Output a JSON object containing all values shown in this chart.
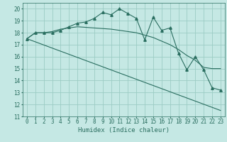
{
  "xlabel": "Humidex (Indice chaleur)",
  "bg_color": "#c5e8e4",
  "grid_color": "#9cccc4",
  "line_color": "#2a6e60",
  "xlim": [
    -0.5,
    23.5
  ],
  "ylim": [
    11,
    20.5
  ],
  "yticks": [
    11,
    12,
    13,
    14,
    15,
    16,
    17,
    18,
    19,
    20
  ],
  "xticks": [
    0,
    1,
    2,
    3,
    4,
    5,
    6,
    7,
    8,
    9,
    10,
    11,
    12,
    13,
    14,
    15,
    16,
    17,
    18,
    19,
    20,
    21,
    22,
    23
  ],
  "line1_x": [
    0,
    1,
    2,
    3,
    4,
    5,
    6,
    7,
    8,
    9,
    10,
    11,
    12,
    13,
    14,
    15,
    16,
    17,
    18,
    19,
    20,
    21,
    22,
    23
  ],
  "line1_y": [
    17.5,
    18.0,
    18.0,
    18.0,
    18.2,
    18.5,
    18.8,
    18.9,
    19.2,
    19.7,
    19.5,
    20.0,
    19.6,
    19.2,
    17.4,
    19.3,
    18.2,
    18.4,
    16.3,
    14.9,
    16.0,
    14.9,
    13.4,
    13.2
  ],
  "line2_x": [
    0,
    1,
    2,
    3,
    4,
    5,
    6,
    7,
    8,
    9,
    10,
    11,
    12,
    13,
    14,
    15,
    16,
    17,
    18,
    19,
    20,
    21,
    22,
    23
  ],
  "line2_y": [
    17.5,
    18.0,
    18.0,
    18.1,
    18.3,
    18.4,
    18.5,
    18.45,
    18.4,
    18.35,
    18.3,
    18.2,
    18.1,
    18.0,
    17.8,
    17.6,
    17.3,
    17.0,
    16.6,
    16.1,
    15.7,
    15.1,
    15.0,
    15.0
  ],
  "line3_x": [
    0,
    23
  ],
  "line3_y": [
    17.5,
    11.5
  ],
  "marker_size": 2.5,
  "tick_fontsize": 5.5,
  "xlabel_fontsize": 6.5
}
